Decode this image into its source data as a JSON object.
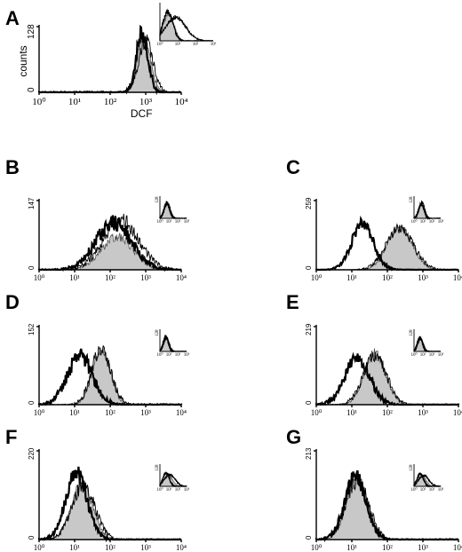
{
  "chart_data": [
    {
      "type": "area",
      "panel": "A",
      "ylabel": "counts",
      "xlabel": "DCF",
      "y_max_label": "128",
      "ylim": [
        0,
        128
      ],
      "x_scale": "log",
      "xlim": [
        1,
        10000
      ],
      "x_ticks": [
        "10⁰",
        "10¹",
        "10²",
        "10³",
        "10⁴"
      ],
      "series": [
        {
          "style": "filled-gray",
          "mean_log10": 2.95,
          "sd_log10": 0.18,
          "peak": 110
        },
        {
          "style": "thin-line",
          "mean_log10": 3.0,
          "sd_log10": 0.2,
          "peak": 100
        },
        {
          "style": "thick-line",
          "mean_log10": 2.9,
          "sd_log10": 0.16,
          "peak": 118
        }
      ],
      "inset": {
        "series": [
          {
            "style": "filled-gray",
            "mean_log10": 0.5,
            "sd_log10": 0.3,
            "peak": 90
          },
          {
            "style": "thin-line",
            "mean_log10": 0.9,
            "sd_log10": 0.55,
            "peak": 80
          },
          {
            "style": "thick-line",
            "mean_log10": 0.45,
            "sd_log10": 0.28,
            "peak": 100
          }
        ]
      }
    },
    {
      "type": "area",
      "panel": "B",
      "y_max_label": "147",
      "ylim": [
        0,
        147
      ],
      "x_scale": "log",
      "xlim": [
        1,
        10000
      ],
      "x_ticks": [
        "10⁰",
        "10¹",
        "10²",
        "10³",
        "10⁴"
      ],
      "series": [
        {
          "style": "filled-gray",
          "mean_log10": 2.2,
          "sd_log10": 0.45,
          "peak": 70
        },
        {
          "style": "thin-line",
          "mean_log10": 2.3,
          "sd_log10": 0.5,
          "peak": 105
        },
        {
          "style": "thick-line",
          "mean_log10": 2.1,
          "sd_log10": 0.5,
          "peak": 100
        }
      ],
      "inset": {
        "y_max_label": "128",
        "series": [
          {
            "style": "filled-gray",
            "mean_log10": 0.8,
            "sd_log10": 0.3,
            "peak": 85
          },
          {
            "style": "thin-line",
            "mean_log10": 0.85,
            "sd_log10": 0.32,
            "peak": 90
          },
          {
            "style": "thick-line",
            "mean_log10": 0.75,
            "sd_log10": 0.3,
            "peak": 95
          }
        ]
      }
    },
    {
      "type": "area",
      "panel": "C",
      "y_max_label": "259",
      "ylim": [
        0,
        259
      ],
      "x_scale": "log",
      "xlim": [
        1,
        10000
      ],
      "x_ticks": [
        "10⁰",
        "10¹",
        "10²",
        "10³",
        "10⁴"
      ],
      "series": [
        {
          "style": "filled-gray",
          "mean_log10": 2.35,
          "sd_log10": 0.35,
          "peak": 160
        },
        {
          "style": "thin-line",
          "mean_log10": 2.35,
          "sd_log10": 0.38,
          "peak": 155
        },
        {
          "style": "thick-line",
          "mean_log10": 1.3,
          "sd_log10": 0.3,
          "peak": 175
        }
      ],
      "inset": {
        "y_max_label": "128",
        "series": [
          {
            "style": "filled-gray",
            "mean_log10": 0.85,
            "sd_log10": 0.28,
            "peak": 80
          },
          {
            "style": "thin-line",
            "mean_log10": 0.9,
            "sd_log10": 0.3,
            "peak": 95
          },
          {
            "style": "thick-line",
            "mean_log10": 0.8,
            "sd_log10": 0.3,
            "peak": 85
          }
        ]
      }
    },
    {
      "type": "area",
      "panel": "D",
      "y_max_label": "152",
      "ylim": [
        0,
        152
      ],
      "x_scale": "log",
      "xlim": [
        1,
        10000
      ],
      "x_ticks": [
        "10⁰",
        "10¹",
        "10²",
        "10³",
        "10⁴"
      ],
      "series": [
        {
          "style": "filled-gray",
          "mean_log10": 1.75,
          "sd_log10": 0.25,
          "peak": 110
        },
        {
          "style": "thin-line",
          "mean_log10": 1.75,
          "sd_log10": 0.27,
          "peak": 108
        },
        {
          "style": "thick-line",
          "mean_log10": 1.15,
          "sd_log10": 0.35,
          "peak": 95
        }
      ],
      "inset": {
        "y_max_label": "128",
        "series": [
          {
            "style": "filled-gray",
            "mean_log10": 0.7,
            "sd_log10": 0.28,
            "peak": 85
          },
          {
            "style": "thin-line",
            "mean_log10": 0.75,
            "sd_log10": 0.3,
            "peak": 80
          },
          {
            "style": "thick-line",
            "mean_log10": 0.65,
            "sd_log10": 0.28,
            "peak": 90
          }
        ]
      }
    },
    {
      "type": "area",
      "panel": "E",
      "y_max_label": "219",
      "ylim": [
        0,
        219
      ],
      "x_scale": "log",
      "xlim": [
        1,
        10000
      ],
      "x_ticks": [
        "10⁰",
        "10¹",
        "10²",
        "10³",
        "10⁴"
      ],
      "series": [
        {
          "style": "filled-gray",
          "mean_log10": 1.65,
          "sd_log10": 0.3,
          "peak": 145
        },
        {
          "style": "thin-line",
          "mean_log10": 1.65,
          "sd_log10": 0.32,
          "peak": 140
        },
        {
          "style": "thick-line",
          "mean_log10": 1.15,
          "sd_log10": 0.35,
          "peak": 130
        }
      ],
      "inset": {
        "y_max_label": "128",
        "series": [
          {
            "style": "filled-gray",
            "mean_log10": 0.7,
            "sd_log10": 0.28,
            "peak": 80
          },
          {
            "style": "thin-line",
            "mean_log10": 0.75,
            "sd_log10": 0.3,
            "peak": 75
          },
          {
            "style": "thick-line",
            "mean_log10": 0.65,
            "sd_log10": 0.28,
            "peak": 85
          }
        ]
      }
    },
    {
      "type": "area",
      "panel": "F",
      "y_max_label": "220",
      "ylim": [
        0,
        220
      ],
      "x_scale": "log",
      "xlim": [
        1,
        10000
      ],
      "x_ticks": [
        "10⁰",
        "10¹",
        "10²",
        "10³",
        "10⁴"
      ],
      "series": [
        {
          "style": "filled-gray",
          "mean_log10": 1.2,
          "sd_log10": 0.3,
          "peak": 140
        },
        {
          "style": "thin-line",
          "mean_log10": 1.25,
          "sd_log10": 0.32,
          "peak": 135
        },
        {
          "style": "thick-line",
          "mean_log10": 1.05,
          "sd_log10": 0.3,
          "peak": 165
        }
      ],
      "inset": {
        "y_max_label": "128",
        "series": [
          {
            "style": "filled-gray",
            "mean_log10": 0.9,
            "sd_log10": 0.5,
            "peak": 65
          },
          {
            "style": "thin-line",
            "mean_log10": 1.1,
            "sd_log10": 0.6,
            "peak": 70
          },
          {
            "style": "thick-line",
            "mean_log10": 0.7,
            "sd_log10": 0.35,
            "peak": 80
          }
        ]
      }
    },
    {
      "type": "area",
      "panel": "G",
      "y_max_label": "213",
      "ylim": [
        0,
        213
      ],
      "x_scale": "log",
      "xlim": [
        1,
        10000
      ],
      "x_ticks": [
        "10⁰",
        "10¹",
        "10²",
        "10³",
        "10⁴"
      ],
      "series": [
        {
          "style": "filled-gray",
          "mean_log10": 1.15,
          "sd_log10": 0.3,
          "peak": 145
        },
        {
          "style": "thin-line",
          "mean_log10": 1.15,
          "sd_log10": 0.32,
          "peak": 140
        },
        {
          "style": "thick-line",
          "mean_log10": 1.1,
          "sd_log10": 0.3,
          "peak": 150
        }
      ],
      "inset": {
        "y_max_label": "128",
        "series": [
          {
            "style": "filled-gray",
            "mean_log10": 0.9,
            "sd_log10": 0.45,
            "peak": 60
          },
          {
            "style": "thin-line",
            "mean_log10": 1.1,
            "sd_log10": 0.55,
            "peak": 65
          },
          {
            "style": "thick-line",
            "mean_log10": 0.7,
            "sd_log10": 0.35,
            "peak": 75
          }
        ]
      }
    }
  ]
}
